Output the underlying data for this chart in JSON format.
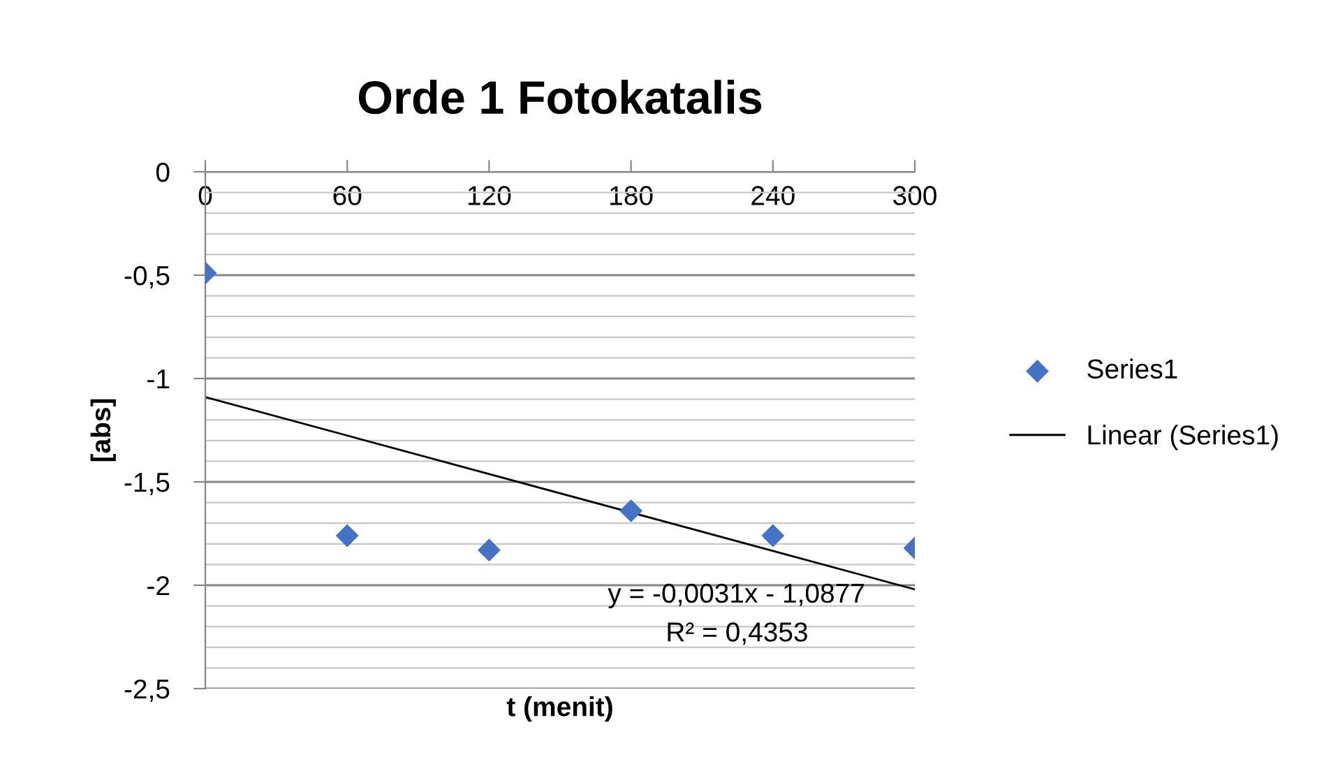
{
  "chart_data": {
    "type": "scatter",
    "title": "Orde 1 Fotokatalis",
    "xlabel": "t (menit)",
    "ylabel": "[abs]",
    "x": [
      0,
      60,
      120,
      180,
      240,
      300
    ],
    "series": [
      {
        "name": "Series1",
        "color": "#4472c4",
        "marker": "diamond",
        "values": [
          -0.49,
          -1.76,
          -1.83,
          -1.64,
          -1.76,
          -1.82
        ]
      },
      {
        "name": "Linear (Series1)",
        "type": "line",
        "color": "#000000",
        "line_style": "solid",
        "marker": "none",
        "x": [
          0,
          300
        ],
        "values": [
          -1.09,
          -2.02
        ]
      }
    ],
    "annotations": [
      "y = -0,0031x - 1,0877",
      "R² = 0,4353"
    ],
    "xlim": [
      0,
      300
    ],
    "xticks": [
      0,
      60,
      120,
      180,
      240,
      300
    ],
    "ylim": [
      -2.5,
      0
    ],
    "yticks": [
      0,
      {
        "value": -0.5,
        "label": "-0,5"
      },
      -1,
      {
        "value": -1.5,
        "label": "-1,5"
      },
      -2,
      {
        "value": -2.5,
        "label": "-2,5"
      }
    ],
    "grid": "y",
    "legend": "right"
  }
}
